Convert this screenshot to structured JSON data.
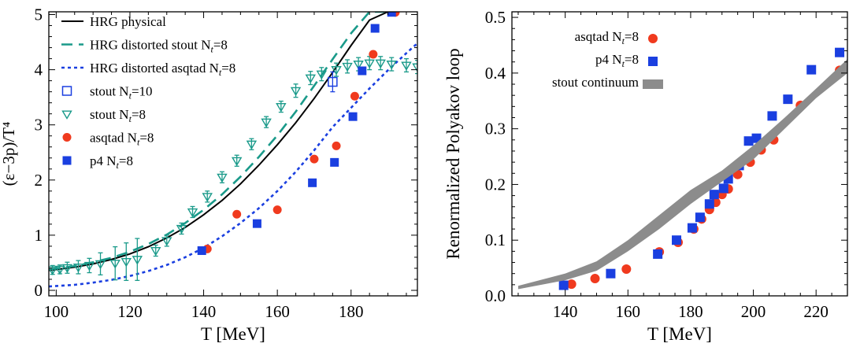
{
  "chart_data": [
    {
      "type": "line",
      "xlabel": "T [MeV]",
      "ylabel": "(ε−3p)/T⁴",
      "xlim": [
        98,
        198
      ],
      "ylim": [
        -0.1,
        5.05
      ],
      "xticks": [
        100,
        120,
        140,
        160,
        180
      ],
      "yticks": [
        0,
        1,
        2,
        3,
        4,
        5
      ],
      "legend_position": "top-left",
      "legend": [
        {
          "label": "HRG physical",
          "sub": ""
        },
        {
          "label": "HRG distorted stout N",
          "sub": "t",
          "suffix": "=8"
        },
        {
          "label": "HRG distorted asqtad N",
          "sub": "t",
          "suffix": "=8"
        },
        {
          "label": "stout N",
          "sub": "t",
          "suffix": "=10"
        },
        {
          "label": "stout N",
          "sub": "t",
          "suffix": "=8"
        },
        {
          "label": "asqtad N",
          "sub": "t",
          "suffix": "=8"
        },
        {
          "label": "p4 N",
          "sub": "t",
          "suffix": "=8"
        }
      ],
      "series": [
        {
          "name": "HRG physical",
          "style": "solid",
          "color": "#000000",
          "x": [
            98,
            105,
            110,
            115,
            120,
            125,
            130,
            135,
            140,
            145,
            150,
            155,
            160,
            165,
            170,
            175,
            180,
            185,
            190,
            192
          ],
          "y": [
            0.36,
            0.42,
            0.48,
            0.56,
            0.66,
            0.79,
            0.95,
            1.14,
            1.37,
            1.63,
            1.93,
            2.27,
            2.64,
            3.04,
            3.48,
            3.95,
            4.44,
            4.9,
            5.05,
            5.05
          ]
        },
        {
          "name": "HRG distorted stout Nt=8",
          "style": "dashed",
          "color": "#1a9a8a",
          "x": [
            98,
            105,
            110,
            115,
            120,
            125,
            130,
            135,
            140,
            145,
            150,
            155,
            160,
            165,
            170,
            175,
            180,
            185,
            189
          ],
          "y": [
            0.38,
            0.44,
            0.51,
            0.59,
            0.7,
            0.84,
            1.01,
            1.22,
            1.46,
            1.74,
            2.06,
            2.42,
            2.81,
            3.24,
            3.71,
            4.19,
            4.66,
            5.05,
            5.05
          ]
        },
        {
          "name": "HRG distorted asqtad Nt=8",
          "style": "dotted",
          "color": "#1a3fe0",
          "x": [
            98,
            105,
            110,
            115,
            120,
            125,
            130,
            135,
            140,
            145,
            150,
            155,
            160,
            165,
            170,
            175,
            180,
            185,
            190,
            195,
            198
          ],
          "y": [
            0.07,
            0.1,
            0.14,
            0.19,
            0.26,
            0.35,
            0.46,
            0.6,
            0.77,
            0.98,
            1.22,
            1.49,
            1.8,
            2.15,
            2.54,
            2.96,
            3.31,
            3.66,
            3.99,
            4.3,
            4.48
          ]
        },
        {
          "name": "stout Nt=10",
          "marker": "open-square",
          "color": "#1a3fe0",
          "x": [
            175
          ],
          "y": [
            3.78
          ],
          "err": [
            0.18
          ]
        },
        {
          "name": "stout Nt=8",
          "marker": "open-triangle-down",
          "color": "#1a9a8a",
          "x": [
            99,
            101,
            103,
            106,
            109,
            112,
            116,
            119,
            122,
            127,
            130,
            134,
            137,
            141,
            145,
            149,
            153,
            157,
            161,
            165,
            169,
            172,
            176,
            179,
            182,
            185,
            188,
            191,
            195,
            198
          ],
          "y": [
            0.37,
            0.38,
            0.41,
            0.42,
            0.45,
            0.48,
            0.49,
            0.52,
            0.56,
            0.72,
            0.9,
            1.12,
            1.42,
            1.7,
            2.05,
            2.35,
            2.65,
            3.05,
            3.33,
            3.62,
            3.85,
            3.92,
            4.0,
            4.06,
            4.1,
            4.12,
            4.12,
            4.1,
            4.08,
            4.05
          ],
          "err": [
            0.08,
            0.08,
            0.1,
            0.12,
            0.13,
            0.2,
            0.3,
            0.34,
            0.38,
            0.1,
            0.1,
            0.1,
            0.1,
            0.1,
            0.1,
            0.1,
            0.1,
            0.1,
            0.1,
            0.12,
            0.12,
            0.12,
            0.12,
            0.12,
            0.12,
            0.12,
            0.12,
            0.12,
            0.12,
            0.12
          ]
        },
        {
          "name": "asqtad Nt=8",
          "marker": "filled-circle",
          "color": "#f03a1e",
          "x": [
            141,
            149,
            160,
            170,
            176,
            181,
            186,
            192
          ],
          "y": [
            0.75,
            1.38,
            1.46,
            2.38,
            2.62,
            3.52,
            4.28,
            5.04
          ]
        },
        {
          "name": "p4 Nt=8",
          "marker": "filled-square",
          "color": "#1a3fe0",
          "x": [
            139.5,
            154.5,
            169.5,
            175.5,
            180.5,
            183,
            186.5,
            191
          ],
          "y": [
            0.72,
            1.21,
            1.95,
            2.32,
            3.15,
            3.98,
            4.75,
            5.04
          ]
        }
      ]
    },
    {
      "type": "scatter",
      "xlabel": "T [MeV]",
      "ylabel": "Renormalized Polyakov loop",
      "xlim": [
        123,
        230
      ],
      "ylim": [
        0,
        0.51
      ],
      "xticks": [
        140,
        160,
        180,
        200,
        220
      ],
      "yticks": [
        0.0,
        0.1,
        0.2,
        0.3,
        0.4,
        0.5
      ],
      "ytick_labels": [
        "0.0",
        "0.1",
        "0.2",
        "0.3",
        "0.4",
        "0.5"
      ],
      "legend_position": "top-left",
      "legend": [
        {
          "label": "asqtad N",
          "sub": "t",
          "suffix": "=8"
        },
        {
          "label": "p4 N",
          "sub": "t",
          "suffix": "=8"
        },
        {
          "label": "stout continuum",
          "sub": ""
        }
      ],
      "series": [
        {
          "name": "asqtad Nt=8",
          "marker": "filled-circle",
          "color": "#f03a1e",
          "x": [
            142,
            149.5,
            159.5,
            170,
            176,
            181,
            183.5,
            186,
            188,
            190,
            192,
            195,
            199,
            202.5,
            206.5,
            215,
            227.5
          ],
          "y": [
            0.021,
            0.031,
            0.048,
            0.079,
            0.096,
            0.12,
            0.138,
            0.155,
            0.168,
            0.182,
            0.192,
            0.218,
            0.24,
            0.262,
            0.28,
            0.342,
            0.405
          ]
        },
        {
          "name": "p4 Nt=8",
          "marker": "filled-square",
          "color": "#1a3fe0",
          "x": [
            139.5,
            154.5,
            169.5,
            175.5,
            180.5,
            183,
            186,
            187.5,
            190.5,
            192,
            195.5,
            198.5,
            201,
            206,
            211,
            218.5,
            227.5
          ],
          "y": [
            0.019,
            0.04,
            0.075,
            0.1,
            0.122,
            0.141,
            0.165,
            0.182,
            0.193,
            0.21,
            0.234,
            0.278,
            0.283,
            0.323,
            0.353,
            0.406,
            0.437
          ]
        },
        {
          "name": "stout continuum",
          "style": "band",
          "color": "#8c8c8c",
          "x": [
            125,
            140,
            150,
            160,
            170,
            180,
            190,
            200,
            210,
            220,
            230
          ],
          "lower": [
            0.012,
            0.028,
            0.045,
            0.08,
            0.12,
            0.165,
            0.205,
            0.245,
            0.3,
            0.355,
            0.4
          ],
          "upper": [
            0.018,
            0.04,
            0.062,
            0.1,
            0.145,
            0.19,
            0.225,
            0.27,
            0.32,
            0.372,
            0.425
          ]
        }
      ]
    }
  ]
}
